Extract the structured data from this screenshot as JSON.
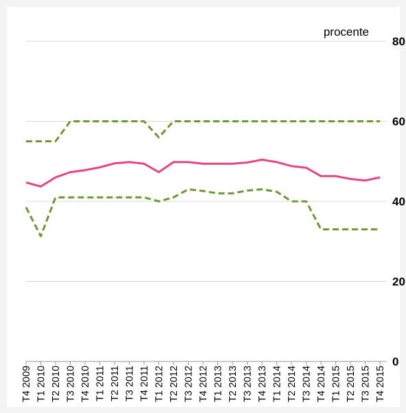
{
  "chart_data": {
    "type": "line",
    "unit_label": "procente",
    "categories": [
      "T4 2009",
      "T1 2010",
      "T2 2010",
      "T3 2010",
      "T4 2010",
      "T1 2011",
      "T2 2011",
      "T3 2011",
      "T4 2011",
      "T1 2012",
      "T2 2012",
      "T3 2012",
      "T4 2012",
      "T1 2013",
      "T2 2013",
      "T3 2013",
      "T4 2013",
      "T1 2014",
      "T2 2014",
      "T3 2014",
      "T4 2014",
      "T1 2015",
      "T2 2015",
      "T3 2015",
      "T4 2015"
    ],
    "ylim": [
      0,
      80
    ],
    "yticks": [
      0,
      20,
      40,
      60,
      80
    ],
    "y_axis_side": "right",
    "grid": true,
    "series": [
      {
        "values": [
          55,
          55,
          55,
          60,
          60,
          60,
          60,
          60,
          60,
          56,
          60,
          60,
          60,
          60,
          60,
          60,
          60,
          60,
          60,
          60,
          60,
          60,
          60,
          60,
          60
        ],
        "color": "#6a9a2f",
        "style": "dashed"
      },
      {
        "values": [
          44.7,
          43.7,
          46,
          47.3,
          47.8,
          48.5,
          49.5,
          49.8,
          49.4,
          47.3,
          49.8,
          49.8,
          49.4,
          49.4,
          49.4,
          49.7,
          50.4,
          49.8,
          48.8,
          48.4,
          46.3,
          46.3,
          45.6,
          45.2,
          46
        ],
        "color": "#e4457f",
        "style": "solid"
      },
      {
        "values": [
          38.5,
          31.3,
          41,
          41,
          41,
          41,
          41,
          41,
          41,
          40,
          41,
          43,
          42.6,
          42,
          42,
          42.7,
          43,
          42.4,
          40,
          40,
          33,
          33,
          33,
          33,
          33
        ],
        "color": "#6a9a2f",
        "style": "dashed"
      }
    ]
  }
}
